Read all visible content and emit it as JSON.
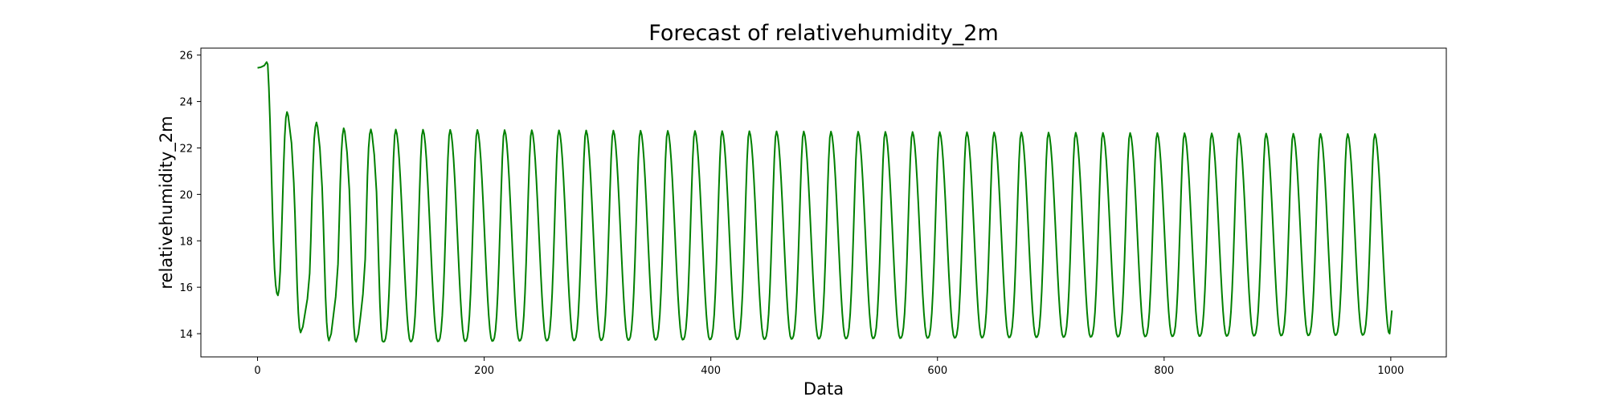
{
  "chart_data": {
    "type": "line",
    "title": "Forecast of relativehumidity_2m",
    "xlabel": "Data",
    "ylabel": "relativehumidity_2m",
    "xlim": [
      -50,
      1049
    ],
    "ylim": [
      13.0,
      26.3
    ],
    "xticks": [
      0,
      200,
      400,
      600,
      800,
      1000
    ],
    "yticks": [
      14,
      16,
      18,
      20,
      22,
      24,
      26
    ],
    "grid": false,
    "legend": "none",
    "series": [
      {
        "color": "#008000",
        "points": [
          [
            0,
            25.45
          ],
          [
            3,
            25.48
          ],
          [
            6,
            25.55
          ],
          [
            8,
            25.7
          ],
          [
            9,
            25.6
          ],
          [
            10,
            24.6
          ],
          [
            11,
            23.2
          ],
          [
            12,
            21.4
          ],
          [
            13,
            19.6
          ],
          [
            14,
            18.0
          ],
          [
            15,
            16.8
          ],
          [
            16,
            16.1
          ],
          [
            17,
            15.75
          ],
          [
            18,
            15.65
          ],
          [
            19,
            15.9
          ],
          [
            20,
            16.7
          ],
          [
            21,
            18.0
          ],
          [
            22,
            19.6
          ],
          [
            23,
            21.2
          ],
          [
            24,
            22.5
          ],
          [
            25,
            23.3
          ],
          [
            26,
            23.55
          ],
          [
            27,
            23.4
          ],
          [
            28,
            23.0
          ],
          [
            30,
            22.2
          ],
          [
            32,
            20.5
          ],
          [
            33,
            19.2
          ],
          [
            34,
            17.6
          ],
          [
            35,
            16.0
          ],
          [
            36,
            14.9
          ],
          [
            37,
            14.25
          ],
          [
            38,
            14.05
          ],
          [
            40,
            14.3
          ],
          [
            42,
            14.9
          ],
          [
            44,
            15.5
          ],
          [
            46,
            16.6
          ],
          [
            47,
            18.0
          ],
          [
            48,
            19.8
          ],
          [
            49,
            21.3
          ],
          [
            50,
            22.4
          ],
          [
            51,
            22.9
          ],
          [
            52,
            23.1
          ],
          [
            53,
            22.9
          ],
          [
            55,
            22.0
          ],
          [
            57,
            20.3
          ],
          [
            58,
            18.9
          ],
          [
            59,
            17.2
          ],
          [
            60,
            15.6
          ],
          [
            61,
            14.5
          ],
          [
            62,
            13.9
          ],
          [
            63,
            13.7
          ],
          [
            65,
            14.0
          ],
          [
            67,
            14.8
          ],
          [
            69,
            15.6
          ],
          [
            71,
            17.0
          ],
          [
            72,
            18.7
          ],
          [
            73,
            20.5
          ],
          [
            74,
            21.8
          ],
          [
            75,
            22.55
          ],
          [
            76,
            22.85
          ],
          [
            77,
            22.7
          ],
          [
            79,
            21.8
          ],
          [
            81,
            20.2
          ],
          [
            82,
            18.7
          ],
          [
            83,
            17.0
          ],
          [
            84,
            15.4
          ],
          [
            85,
            14.3
          ],
          [
            86,
            13.75
          ],
          [
            87,
            13.65
          ],
          [
            89,
            14.0
          ],
          [
            91,
            14.8
          ],
          [
            93,
            15.7
          ],
          [
            95,
            17.2
          ],
          [
            96,
            19.0
          ],
          [
            97,
            20.8
          ],
          [
            98,
            22.0
          ],
          [
            99,
            22.6
          ],
          [
            100,
            22.8
          ],
          [
            101,
            22.6
          ],
          [
            103,
            21.7
          ],
          [
            105,
            20.1
          ],
          [
            106,
            18.6
          ],
          [
            107,
            16.9
          ],
          [
            108,
            15.3
          ],
          [
            109,
            14.2
          ],
          [
            110,
            13.7
          ],
          [
            111,
            13.65
          ]
        ],
        "cycle": {
          "start": 111,
          "end": 999,
          "period": 24,
          "peak_start": 22.8,
          "peak_end": 22.6,
          "trough_start": 13.65,
          "trough_end": 13.95
        },
        "end_points": [
          [
            999,
            14.0
          ],
          [
            1000,
            14.5
          ],
          [
            1001,
            15.0
          ]
        ]
      }
    ]
  }
}
